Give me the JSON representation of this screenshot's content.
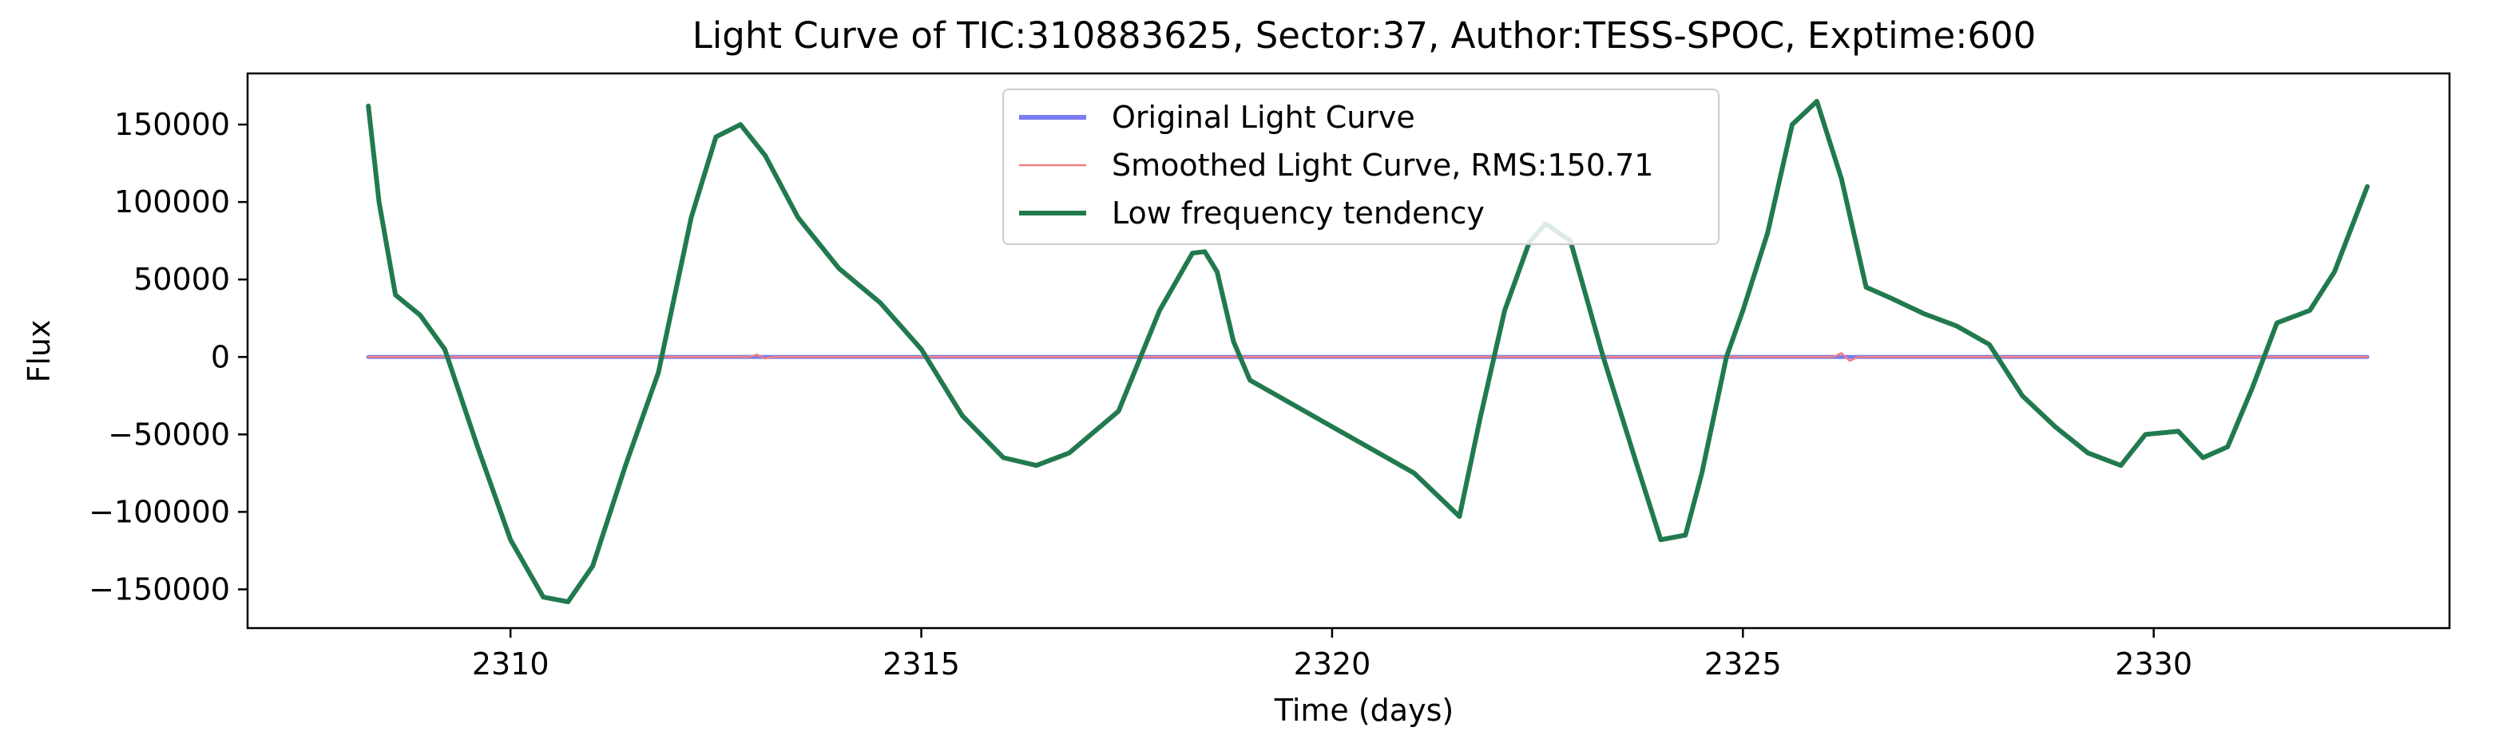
{
  "chart_data": {
    "type": "line",
    "title": "Light Curve of TIC:310883625, Sector:37, Author:TESS-SPOC, Exptime:600",
    "xlabel": "Time (days)",
    "ylabel": "Flux",
    "xlim": [
      2306.8,
      2333.6
    ],
    "ylim": [
      -175000,
      183000
    ],
    "xticks": [
      2310,
      2315,
      2320,
      2325,
      2330
    ],
    "yticks": [
      -150000,
      -100000,
      -50000,
      0,
      50000,
      100000,
      150000
    ],
    "xtick_labels": [
      "2310",
      "2315",
      "2320",
      "2325",
      "2330"
    ],
    "ytick_labels": [
      "−150000",
      "−100000",
      "−50000",
      "0",
      "50000",
      "100000",
      "150000"
    ],
    "grid": false,
    "legend_position": "top-center",
    "series": [
      {
        "name": "Original Light Curve",
        "color": "#7b7bf0",
        "x": [
          2308.27,
          2332.6
        ],
        "y": [
          0,
          0
        ]
      },
      {
        "name": "Smoothed Light Curve, RMS:150.71",
        "color": "#f08080",
        "x": [
          2308.27,
          2312.9,
          2313.0,
          2313.1,
          2313.2,
          2326.1,
          2326.2,
          2326.3,
          2326.4,
          2332.6
        ],
        "y": [
          0,
          0,
          1500,
          -1000,
          0,
          0,
          2500,
          -2500,
          0,
          0
        ]
      },
      {
        "name": "Low frequency tendency",
        "color": "#217a4e",
        "x": [
          2308.27,
          2308.4,
          2308.6,
          2308.9,
          2309.2,
          2309.6,
          2310.0,
          2310.4,
          2310.7,
          2311.0,
          2311.4,
          2311.8,
          2312.2,
          2312.5,
          2312.8,
          2313.1,
          2313.5,
          2314.0,
          2314.5,
          2315.0,
          2315.5,
          2316.0,
          2316.4,
          2316.8,
          2317.4,
          2317.9,
          2318.3,
          2318.45,
          2318.6,
          2318.8,
          2319.0,
          2320.0,
          2321.0,
          2321.55,
          2321.8,
          2322.1,
          2322.4,
          2322.6,
          2322.9,
          2323.3,
          2323.7,
          2324.0,
          2324.3,
          2324.5,
          2324.8,
          2325.0,
          2325.3,
          2325.6,
          2325.9,
          2326.2,
          2326.5,
          2326.8,
          2327.2,
          2327.6,
          2328.0,
          2328.4,
          2328.8,
          2329.2,
          2329.6,
          2329.9,
          2330.3,
          2330.6,
          2330.9,
          2331.2,
          2331.5,
          2331.9,
          2332.2,
          2332.6
        ],
        "y": [
          162000,
          100000,
          40000,
          27000,
          5000,
          -58000,
          -118000,
          -155000,
          -158000,
          -135000,
          -70000,
          -10000,
          90000,
          142000,
          150000,
          130000,
          90000,
          57000,
          35000,
          5000,
          -38000,
          -65000,
          -70000,
          -62000,
          -35000,
          30000,
          67000,
          68000,
          55000,
          10000,
          -15000,
          -45000,
          -75000,
          -103000,
          -40000,
          30000,
          74000,
          86000,
          75000,
          0,
          -68000,
          -118000,
          -115000,
          -75000,
          0,
          30000,
          80000,
          150000,
          165000,
          115000,
          45000,
          38000,
          28000,
          20000,
          8000,
          -25000,
          -45000,
          -62000,
          -70000,
          -50000,
          -48000,
          -65000,
          -58000,
          -20000,
          22000,
          30000,
          55000,
          110000
        ]
      }
    ]
  }
}
